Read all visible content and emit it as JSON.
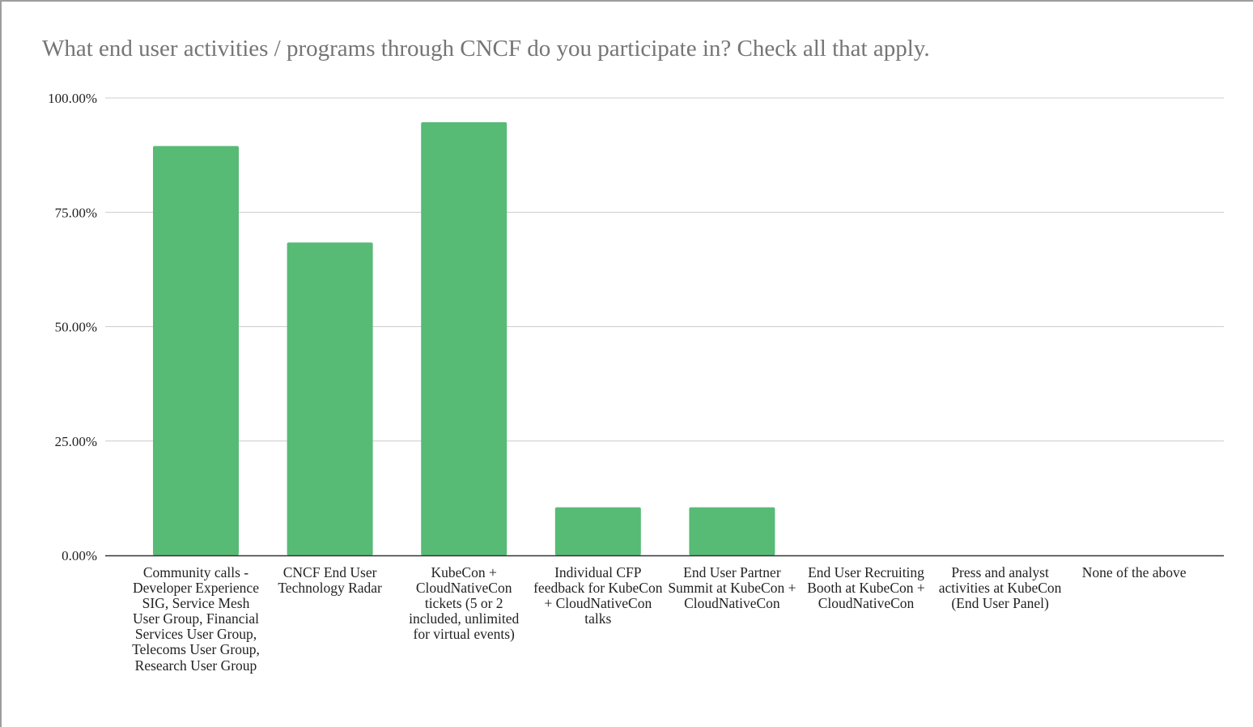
{
  "chart_data": {
    "type": "bar",
    "title": "What end user activities / programs through CNCF do you participate in? Check all that apply.",
    "xlabel": "",
    "ylabel": "",
    "ylim": [
      0,
      1
    ],
    "yticks": [
      0,
      0.25,
      0.5,
      0.75,
      1
    ],
    "ytick_labels": [
      "0.00%",
      "25.00%",
      "50.00%",
      "75.00%",
      "100.00%"
    ],
    "grid": true,
    "legend": "none",
    "bar_color": "#57bb75",
    "categories": [
      "Community calls - Developer Experience SIG, Service Mesh User Group, Financial Services User Group, Telecoms User Group, Research User Group",
      "CNCF End User Technology Radar",
      "KubeCon + CloudNativeCon tickets (5 or 2 included, unlimited for virtual events)",
      "Individual CFP feedback for KubeCon + CloudNativeCon talks",
      "End User Partner Summit at KubeCon + CloudNativeCon",
      "End User Recruiting Booth at KubeCon + CloudNativeCon",
      "Press and analyst activities at KubeCon (End User Panel)",
      "None of the above"
    ],
    "values": [
      0.895,
      0.684,
      0.947,
      0.105,
      0.105,
      0,
      0,
      0
    ]
  }
}
